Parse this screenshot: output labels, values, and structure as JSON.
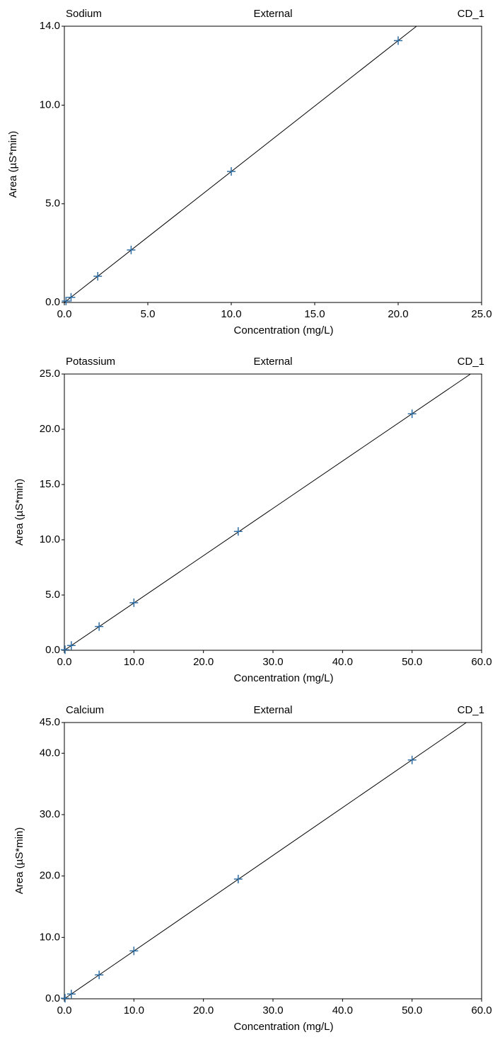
{
  "chart_data": [
    {
      "type": "scatter",
      "title": "Sodium",
      "subtitle": "External",
      "annotation": "CD_1",
      "xlabel": "Concentration (mg/L)",
      "ylabel": "Area (µS*min)",
      "x": [
        0.1,
        0.4,
        2,
        4,
        10,
        20
      ],
      "values": [
        0.07,
        0.26,
        1.33,
        2.66,
        6.64,
        13.27
      ],
      "color": "#2e6da4",
      "fit": {
        "x": [
          0,
          21.1
        ],
        "values": [
          0,
          14
        ],
        "color": "#000000"
      },
      "xlim": [
        0,
        25
      ],
      "xticks": [
        {
          "value": 0,
          "label": "0.0"
        },
        {
          "value": 5,
          "label": "5.0"
        },
        {
          "value": 10,
          "label": "10.0"
        },
        {
          "value": 15,
          "label": "15.0"
        },
        {
          "value": 20,
          "label": "20.0"
        },
        {
          "value": 25,
          "label": "25.0"
        }
      ],
      "ylim": [
        0,
        14
      ],
      "yticks": [
        {
          "value": 0,
          "label": "0.0"
        },
        {
          "value": 5,
          "label": "5.0"
        },
        {
          "value": 10,
          "label": "10.0"
        },
        {
          "value": 14,
          "label": "14.0"
        }
      ]
    },
    {
      "type": "scatter",
      "title": "Potassium",
      "subtitle": "External",
      "annotation": "CD_1",
      "xlabel": "Concentration (mg/L)",
      "ylabel": "Area (µS*min)",
      "x": [
        0.1,
        1,
        5,
        10,
        25,
        50
      ],
      "values": [
        0.05,
        0.43,
        2.15,
        4.3,
        10.75,
        21.4
      ],
      "color": "#2e6da4",
      "fit": {
        "x": [
          0,
          58.4
        ],
        "values": [
          0,
          25
        ],
        "color": "#000000"
      },
      "xlim": [
        0,
        60
      ],
      "xticks": [
        {
          "value": 0,
          "label": "0.0"
        },
        {
          "value": 10,
          "label": "10.0"
        },
        {
          "value": 20,
          "label": "20.0"
        },
        {
          "value": 30,
          "label": "30.0"
        },
        {
          "value": 40,
          "label": "40.0"
        },
        {
          "value": 50,
          "label": "50.0"
        },
        {
          "value": 60,
          "label": "60.0"
        }
      ],
      "ylim": [
        0,
        25
      ],
      "yticks": [
        {
          "value": 0,
          "label": "0.0"
        },
        {
          "value": 5,
          "label": "5.0"
        },
        {
          "value": 10,
          "label": "10.0"
        },
        {
          "value": 15,
          "label": "15.0"
        },
        {
          "value": 20,
          "label": "20.0"
        },
        {
          "value": 25,
          "label": "25.0"
        }
      ]
    },
    {
      "type": "scatter",
      "title": "Calcium",
      "subtitle": "External",
      "annotation": "CD_1",
      "xlabel": "Concentration (mg/L)",
      "ylabel": "Area (µS*min)",
      "x": [
        0.1,
        1,
        5,
        10,
        25,
        50
      ],
      "values": [
        0.08,
        0.78,
        3.9,
        7.8,
        19.5,
        38.9
      ],
      "color": "#2e6da4",
      "fit": {
        "x": [
          0,
          57.8
        ],
        "values": [
          0,
          45
        ],
        "color": "#000000"
      },
      "xlim": [
        0,
        60
      ],
      "xticks": [
        {
          "value": 0,
          "label": "0.0"
        },
        {
          "value": 10,
          "label": "10.0"
        },
        {
          "value": 20,
          "label": "20.0"
        },
        {
          "value": 30,
          "label": "30.0"
        },
        {
          "value": 40,
          "label": "40.0"
        },
        {
          "value": 50,
          "label": "50.0"
        },
        {
          "value": 60,
          "label": "60.0"
        }
      ],
      "ylim": [
        0,
        45
      ],
      "yticks": [
        {
          "value": 0,
          "label": "0.0"
        },
        {
          "value": 10,
          "label": "10.0"
        },
        {
          "value": 20,
          "label": "20.0"
        },
        {
          "value": 30,
          "label": "30.0"
        },
        {
          "value": 40,
          "label": "40.0"
        },
        {
          "value": 45,
          "label": "45.0"
        }
      ]
    }
  ]
}
